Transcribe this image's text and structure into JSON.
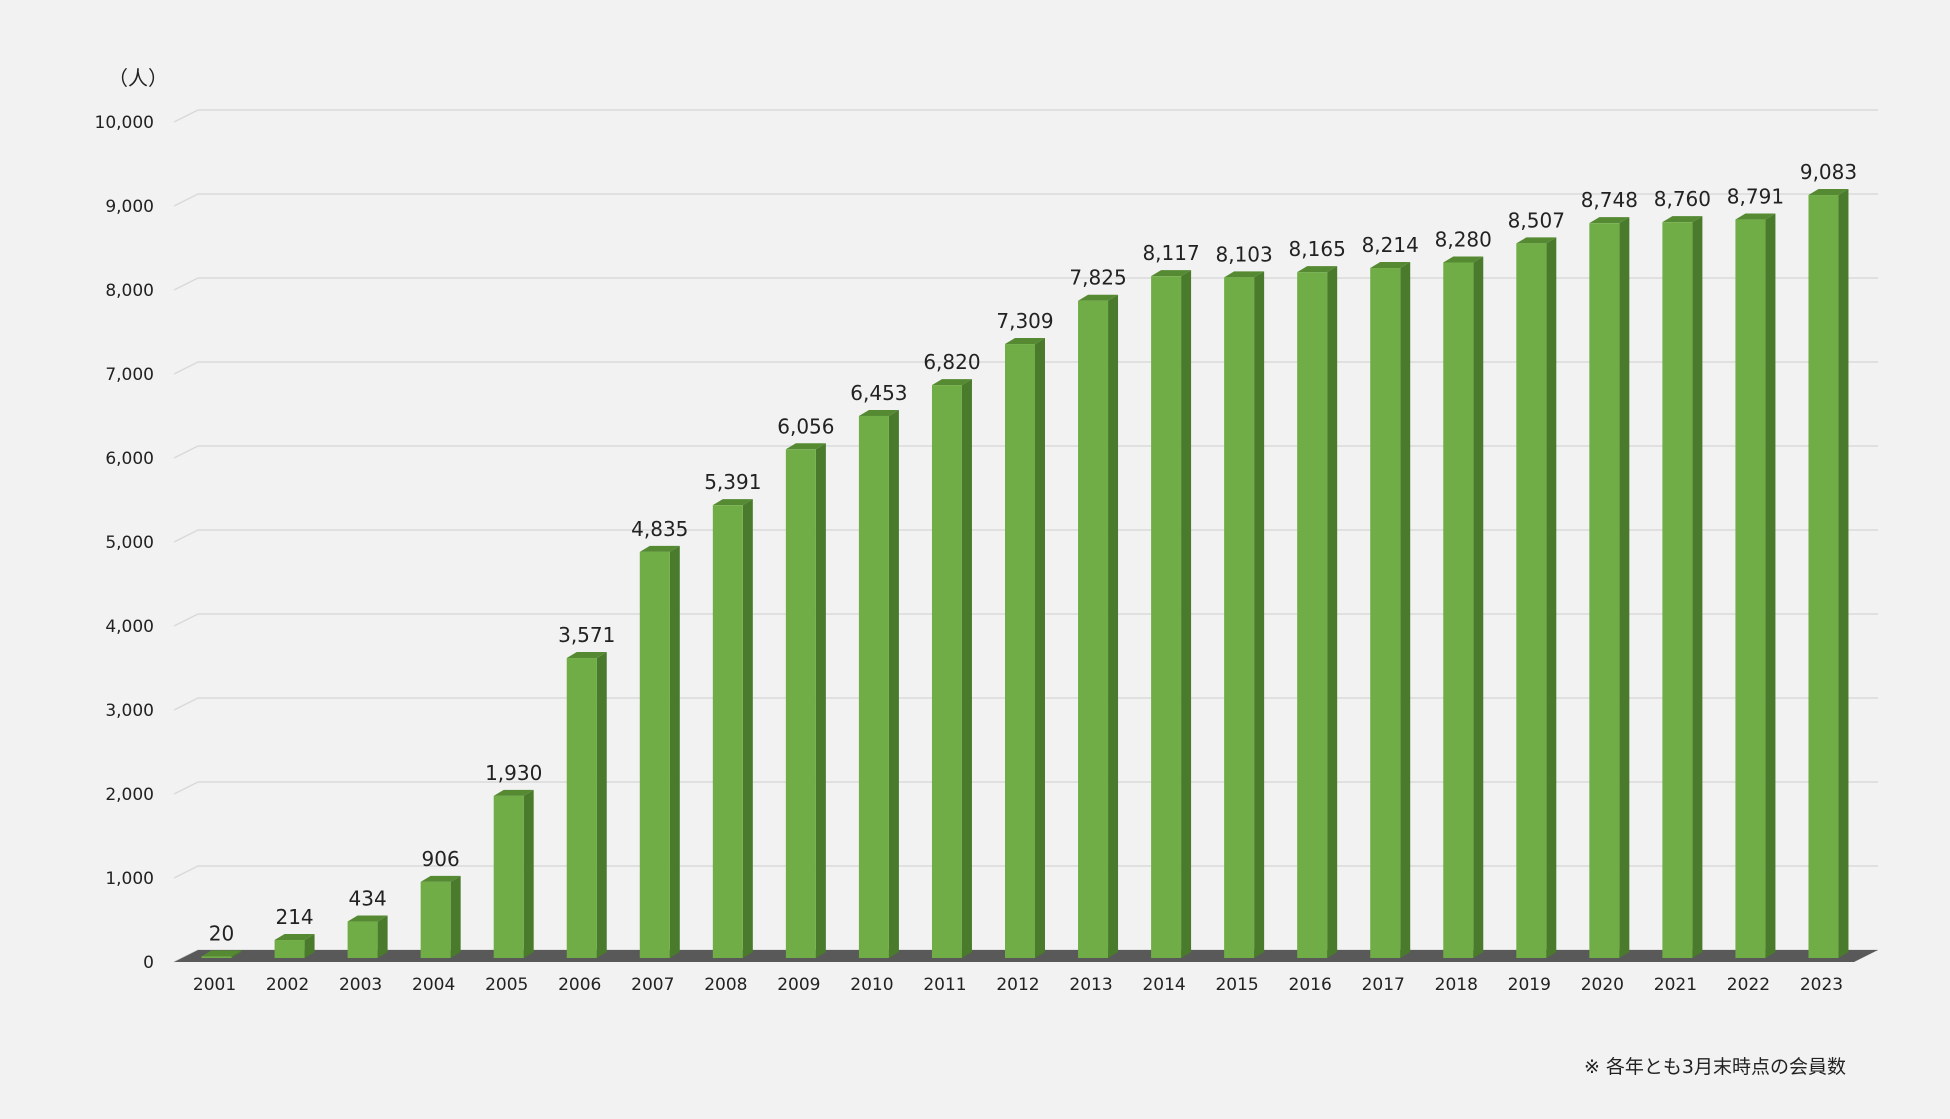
{
  "chart_data": {
    "type": "bar",
    "unit_label": "（人）",
    "categories": [
      "2001",
      "2002",
      "2003",
      "2004",
      "2005",
      "2006",
      "2007",
      "2008",
      "2009",
      "2010",
      "2011",
      "2012",
      "2013",
      "2014",
      "2015",
      "2016",
      "2017",
      "2018",
      "2019",
      "2020",
      "2021",
      "2022",
      "2023"
    ],
    "values": [
      20,
      214,
      434,
      906,
      1930,
      3571,
      4835,
      5391,
      6056,
      6453,
      6820,
      7309,
      7825,
      8117,
      8103,
      8165,
      8214,
      8280,
      8507,
      8748,
      8760,
      8791,
      9083
    ],
    "data_labels": [
      "20",
      "214",
      "434",
      "906",
      "1,930",
      "3,571",
      "4,835",
      "5,391",
      "6,056",
      "6,453",
      "6,820",
      "7,309",
      "7,825",
      "8,117",
      "8,103",
      "8,165",
      "8,214",
      "8,280",
      "8,507",
      "8,748",
      "8,760",
      "8,791",
      "9,083"
    ],
    "y_ticks": [
      "0",
      "1,000",
      "2,000",
      "3,000",
      "4,000",
      "5,000",
      "6,000",
      "7,000",
      "8,000",
      "9,000",
      "10,000"
    ],
    "ylim": [
      0,
      10000
    ],
    "grid": true,
    "note": "※ 各年とも3月末時点の会員数",
    "colors": {
      "bar_front": "#70ad47",
      "bar_side": "#4a7a2c",
      "bar_top": "#558a33",
      "floor": "#595959",
      "grid": "#d9d9d9"
    }
  }
}
